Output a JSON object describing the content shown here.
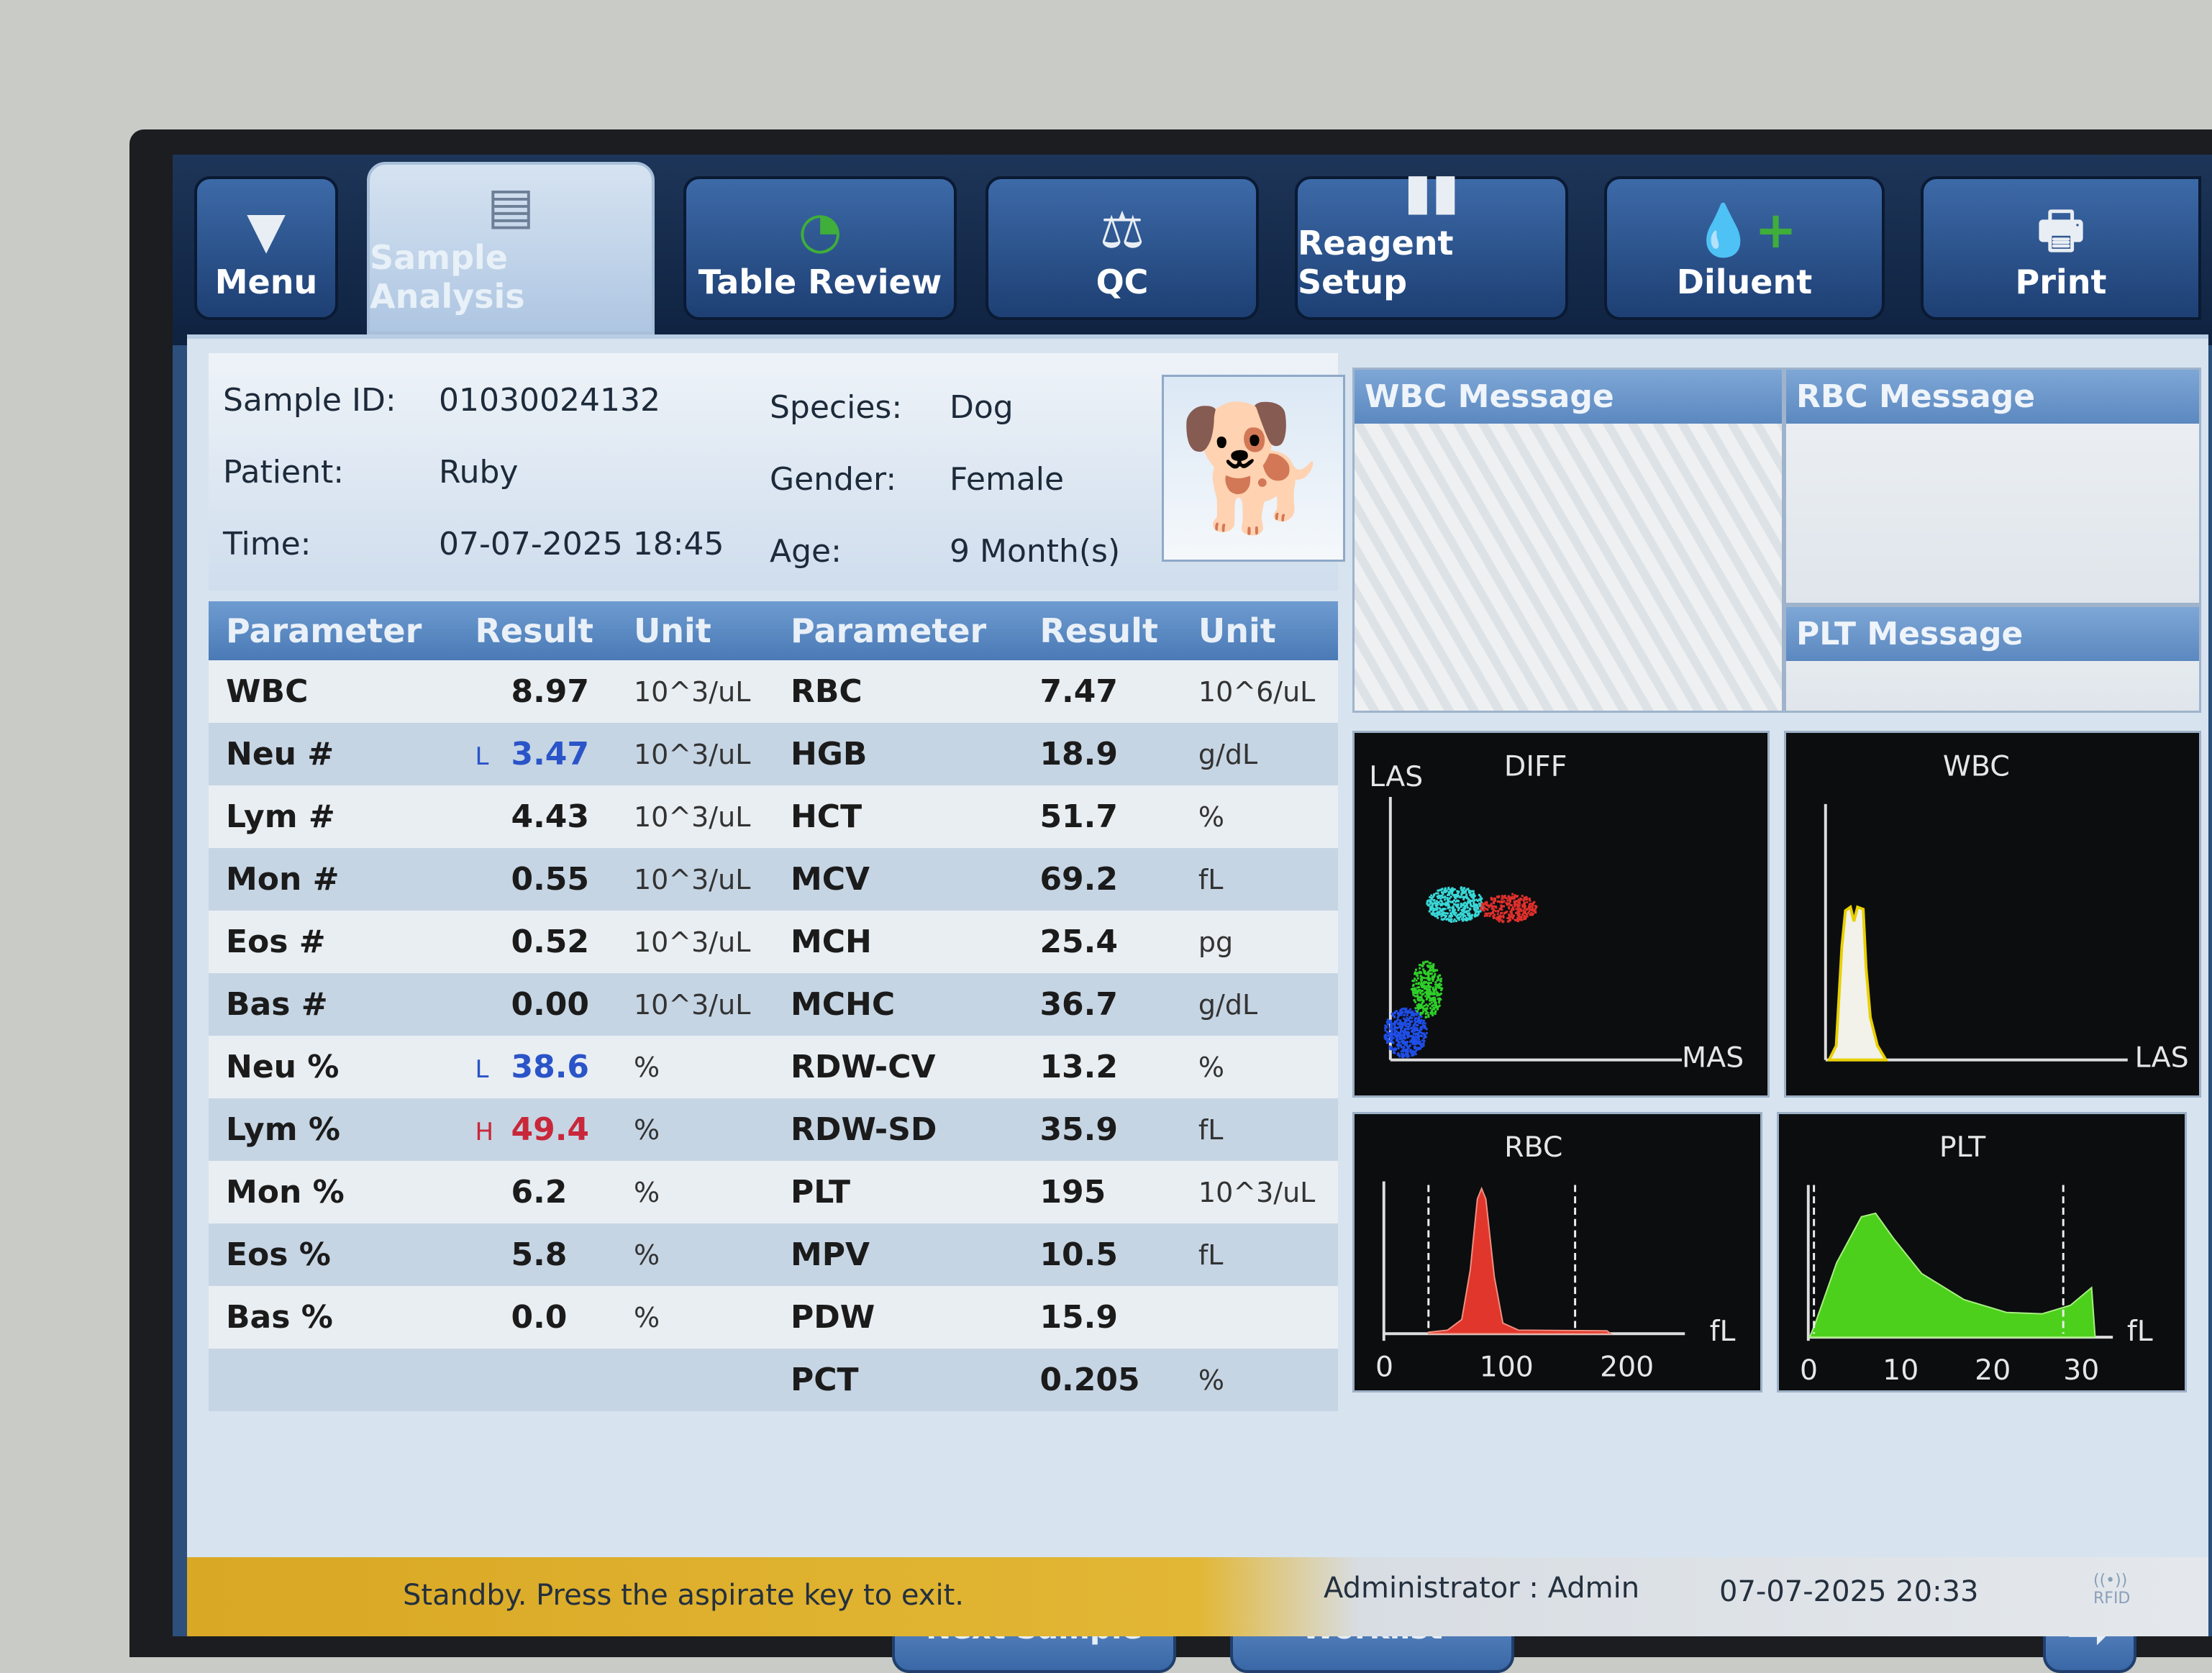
{
  "toolbar": {
    "buttons": [
      {
        "label": "Menu",
        "icon": "triangle-down-icon"
      },
      {
        "label": "Sample Analysis",
        "icon": "chart-document-icon",
        "active": true
      },
      {
        "label": "Table Review",
        "icon": "clock-document-icon"
      },
      {
        "label": "QC",
        "icon": "scale-icon"
      },
      {
        "label": "Reagent Setup",
        "icon": "reagent-bottles-icon"
      },
      {
        "label": "Diluent",
        "icon": "drop-plus-icon"
      },
      {
        "label": "Print",
        "icon": "printer-icon"
      }
    ]
  },
  "sample": {
    "id_label": "Sample ID:",
    "id": "01030024132",
    "patient_label": "Patient:",
    "patient": "Ruby",
    "time_label": "Time:",
    "time": "07-07-2025 18:45",
    "species_label": "Species:",
    "species": "Dog",
    "gender_label": "Gender:",
    "gender": "Female",
    "age_label": "Age:",
    "age": "9 Month(s)"
  },
  "table": {
    "headers": [
      "Parameter",
      "Result",
      "Unit",
      "Parameter",
      "Result",
      "Unit"
    ],
    "rows": [
      {
        "p1": "WBC",
        "f1": "",
        "r1": "8.97",
        "u1": "10^3/uL",
        "p2": "RBC",
        "r2": "7.47",
        "u2": "10^6/uL"
      },
      {
        "p1": "Neu #",
        "f1": "L",
        "r1": "3.47",
        "u1": "10^3/uL",
        "p2": "HGB",
        "r2": "18.9",
        "u2": "g/dL"
      },
      {
        "p1": "Lym #",
        "f1": "",
        "r1": "4.43",
        "u1": "10^3/uL",
        "p2": "HCT",
        "r2": "51.7",
        "u2": "%"
      },
      {
        "p1": "Mon #",
        "f1": "",
        "r1": "0.55",
        "u1": "10^3/uL",
        "p2": "MCV",
        "r2": "69.2",
        "u2": "fL"
      },
      {
        "p1": "Eos #",
        "f1": "",
        "r1": "0.52",
        "u1": "10^3/uL",
        "p2": "MCH",
        "r2": "25.4",
        "u2": "pg"
      },
      {
        "p1": "Bas #",
        "f1": "",
        "r1": "0.00",
        "u1": "10^3/uL",
        "p2": "MCHC",
        "r2": "36.7",
        "u2": "g/dL"
      },
      {
        "p1": "Neu %",
        "f1": "L",
        "r1": "38.6",
        "u1": "%",
        "p2": "RDW-CV",
        "r2": "13.2",
        "u2": "%"
      },
      {
        "p1": "Lym %",
        "f1": "H",
        "r1": "49.4",
        "u1": "%",
        "p2": "RDW-SD",
        "r2": "35.9",
        "u2": "fL"
      },
      {
        "p1": "Mon %",
        "f1": "",
        "r1": "6.2",
        "u1": "%",
        "p2": "PLT",
        "r2": "195",
        "u2": "10^3/uL"
      },
      {
        "p1": "Eos %",
        "f1": "",
        "r1": "5.8",
        "u1": "%",
        "p2": "MPV",
        "r2": "10.5",
        "u2": "fL"
      },
      {
        "p1": "Bas %",
        "f1": "",
        "r1": "0.0",
        "u1": "%",
        "p2": "PDW",
        "r2": "15.9",
        "u2": ""
      },
      {
        "p1": "",
        "f1": "",
        "r1": "",
        "u1": "",
        "p2": "PCT",
        "r2": "0.205",
        "u2": "%"
      }
    ]
  },
  "messages": {
    "wbc": "WBC Message",
    "rbc": "RBC Message",
    "plt": "PLT Message"
  },
  "charts": {
    "diff": {
      "title": "DIFF",
      "ylabel": "LAS",
      "xlabel": "MAS"
    },
    "wbc": {
      "title": "WBC",
      "xlabel": "LAS"
    },
    "rbc": {
      "title": "RBC",
      "unit": "fL",
      "ticks": [
        "0",
        "100",
        "200"
      ]
    },
    "plt": {
      "title": "PLT",
      "unit": "fL",
      "ticks": [
        "0",
        "10",
        "20",
        "30"
      ]
    }
  },
  "buttons": {
    "next_sample": "Next Sample",
    "worklist": "Worklist",
    "next_icon": "arrow-right-icon"
  },
  "status": {
    "message": "Standby. Press the aspirate key to exit.",
    "user": "Administrator : Admin",
    "datetime": "07-07-2025 20:33",
    "rfid": "RFID"
  },
  "colors": {
    "flag_low": "#2a54c8",
    "flag_high": "#c8283a",
    "status_bar": "#e2b735"
  }
}
